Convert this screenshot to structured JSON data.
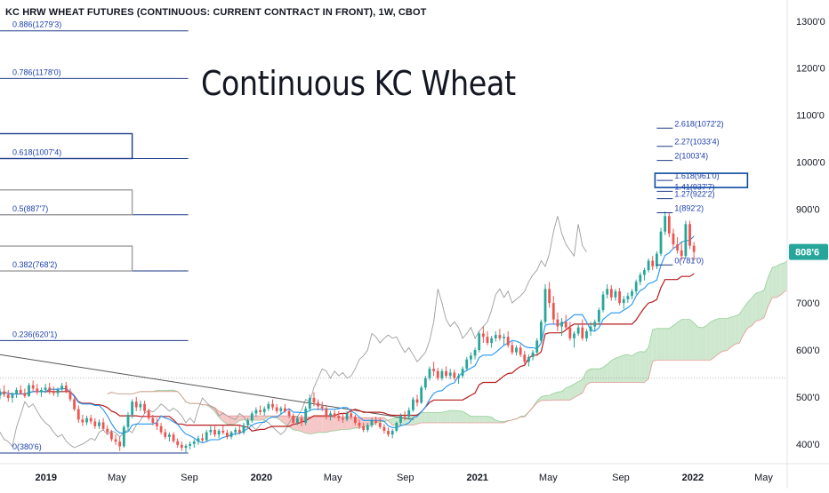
{
  "header": {
    "symbol": "KC HRW WHEAT FUTURES (CONTINUOUS: CURRENT CONTRACT IN FRONT), 1W, CBOT"
  },
  "annotation_title": "Continuous KC Wheat",
  "price_tag": {
    "label": "808'6",
    "value": 808.75,
    "color": "#26a69a"
  },
  "colors": {
    "up": "#26a69a",
    "down": "#ef5350",
    "fib_line": "#1e3a8a",
    "fib_text": "#1e40af",
    "tenkan": "#2196f3",
    "kijun": "#b71c1c",
    "lagging": "#9e9e9e",
    "cloud_bull": "#a5d6a7",
    "cloud_bear": "#ef9a9a",
    "trendline": "#555555"
  },
  "chart_data": {
    "type": "candlestick",
    "timeframe": "1W",
    "x_ticks": [
      "2019",
      "May",
      "Sep",
      "2020",
      "May",
      "Sep",
      "2021",
      "May",
      "Sep",
      "2022",
      "May"
    ],
    "x_tick_dates": [
      "2019-01-01",
      "2019-05-01",
      "2019-09-01",
      "2020-01-01",
      "2020-05-01",
      "2020-09-01",
      "2021-01-01",
      "2021-05-01",
      "2021-09-01",
      "2022-01-01",
      "2022-05-01"
    ],
    "y_ticks": [
      "1300'0",
      "1200'0",
      "1100'0",
      "1000'0",
      "900'0",
      "800'0",
      "700'0",
      "600'0",
      "500'0",
      "400'0"
    ],
    "y_tick_values": [
      1300,
      1200,
      1100,
      1000,
      900,
      800,
      700,
      600,
      500,
      400
    ],
    "ylim": [
      358,
      1345
    ],
    "xlim": [
      "2018-10-15",
      "2022-06-10"
    ],
    "last_price": 808.75,
    "dotted_reference": 540,
    "trendline": {
      "from": [
        "2018-10-15",
        590
      ],
      "to": [
        "2020-09-15",
        452
      ]
    },
    "fib_retracement": [
      {
        "label": "0.886(1279'3)",
        "price": 1279.375
      },
      {
        "label": "0.786(1178'0)",
        "price": 1178
      },
      {
        "label": "0.618(1007'4)",
        "price": 1007.5,
        "boxed": true
      },
      {
        "label": "0.5(887'7)",
        "price": 887.875,
        "boxed": true
      },
      {
        "label": "0.382(768'2)",
        "price": 768.25,
        "boxed": true
      },
      {
        "label": "0.236(620'1)",
        "price": 620.125
      },
      {
        "label": "0(380'6)",
        "price": 380.75
      }
    ],
    "fib_extension": [
      {
        "label": "2.618(1072'2)",
        "price": 1072.25
      },
      {
        "label": "2.27(1033'4)",
        "price": 1033.5
      },
      {
        "label": "2(1003'4)",
        "price": 1003.5
      },
      {
        "label": "1.618(961'0)",
        "price": 961,
        "boxed": true
      },
      {
        "label": "1.41(937'7)",
        "price": 937.875
      },
      {
        "label": "1.27(922'2)",
        "price": 922.25
      },
      {
        "label": "1(892'2)",
        "price": 892.25
      },
      {
        "label": "0(781'0)",
        "price": 781
      }
    ],
    "candles": [
      [
        "2018-10-15",
        503,
        518,
        495,
        512
      ],
      [
        "2018-10-22",
        512,
        525,
        500,
        505
      ],
      [
        "2018-10-29",
        505,
        515,
        490,
        498
      ],
      [
        "2018-11-05",
        498,
        510,
        488,
        506
      ],
      [
        "2018-11-12",
        506,
        520,
        498,
        515
      ],
      [
        "2018-11-19",
        515,
        525,
        505,
        508
      ],
      [
        "2018-11-26",
        508,
        518,
        498,
        502
      ],
      [
        "2018-12-03",
        502,
        530,
        500,
        525
      ],
      [
        "2018-12-10",
        525,
        535,
        512,
        518
      ],
      [
        "2018-12-17",
        518,
        528,
        505,
        510
      ],
      [
        "2018-12-24",
        510,
        520,
        500,
        515
      ],
      [
        "2018-12-31",
        515,
        528,
        508,
        520
      ],
      [
        "2019-01-07",
        520,
        530,
        506,
        512
      ],
      [
        "2019-01-14",
        512,
        522,
        502,
        508
      ],
      [
        "2019-01-21",
        508,
        520,
        500,
        516
      ],
      [
        "2019-01-28",
        516,
        530,
        510,
        524
      ],
      [
        "2019-02-04",
        524,
        532,
        508,
        512
      ],
      [
        "2019-02-11",
        512,
        518,
        490,
        495
      ],
      [
        "2019-02-18",
        495,
        500,
        470,
        474
      ],
      [
        "2019-02-25",
        474,
        482,
        445,
        452
      ],
      [
        "2019-03-04",
        452,
        462,
        438,
        446
      ],
      [
        "2019-03-11",
        446,
        460,
        440,
        455
      ],
      [
        "2019-03-18",
        455,
        462,
        442,
        448
      ],
      [
        "2019-03-25",
        448,
        455,
        432,
        438
      ],
      [
        "2019-04-01",
        438,
        452,
        432,
        446
      ],
      [
        "2019-04-08",
        446,
        455,
        428,
        432
      ],
      [
        "2019-04-15",
        432,
        440,
        420,
        425
      ],
      [
        "2019-04-22",
        425,
        430,
        405,
        410
      ],
      [
        "2019-04-29",
        410,
        420,
        398,
        405
      ],
      [
        "2019-05-06",
        405,
        415,
        385,
        395
      ],
      [
        "2019-05-13",
        395,
        440,
        392,
        436
      ],
      [
        "2019-05-20",
        436,
        468,
        430,
        462
      ],
      [
        "2019-05-27",
        462,
        495,
        455,
        490
      ],
      [
        "2019-06-03",
        490,
        500,
        470,
        478
      ],
      [
        "2019-06-10",
        478,
        492,
        470,
        485
      ],
      [
        "2019-06-17",
        485,
        492,
        465,
        470
      ],
      [
        "2019-06-24",
        470,
        475,
        450,
        455
      ],
      [
        "2019-07-01",
        455,
        462,
        440,
        445
      ],
      [
        "2019-07-08",
        445,
        455,
        430,
        438
      ],
      [
        "2019-07-15",
        438,
        445,
        420,
        425
      ],
      [
        "2019-07-22",
        425,
        432,
        410,
        415
      ],
      [
        "2019-07-29",
        415,
        425,
        405,
        420
      ],
      [
        "2019-08-05",
        420,
        425,
        402,
        406
      ],
      [
        "2019-08-12",
        406,
        412,
        392,
        398
      ],
      [
        "2019-08-19",
        398,
        405,
        385,
        392
      ],
      [
        "2019-08-26",
        392,
        400,
        380,
        396
      ],
      [
        "2019-09-02",
        396,
        405,
        388,
        400
      ],
      [
        "2019-09-09",
        400,
        410,
        392,
        405
      ],
      [
        "2019-09-16",
        405,
        418,
        398,
        412
      ],
      [
        "2019-09-23",
        412,
        422,
        404,
        408
      ],
      [
        "2019-09-30",
        408,
        430,
        405,
        425
      ],
      [
        "2019-10-07",
        425,
        438,
        418,
        430
      ],
      [
        "2019-10-14",
        430,
        438,
        415,
        420
      ],
      [
        "2019-10-21",
        420,
        432,
        412,
        428
      ],
      [
        "2019-10-28",
        428,
        440,
        420,
        424
      ],
      [
        "2019-11-04",
        424,
        430,
        410,
        415
      ],
      [
        "2019-11-11",
        415,
        428,
        410,
        425
      ],
      [
        "2019-11-18",
        425,
        435,
        418,
        430
      ],
      [
        "2019-11-25",
        430,
        440,
        420,
        424
      ],
      [
        "2019-12-02",
        424,
        445,
        420,
        440
      ],
      [
        "2019-12-09",
        440,
        455,
        432,
        450
      ],
      [
        "2019-12-16",
        450,
        470,
        445,
        465
      ],
      [
        "2019-12-23",
        465,
        478,
        458,
        472
      ],
      [
        "2019-12-30",
        472,
        482,
        462,
        468
      ],
      [
        "2020-01-06",
        468,
        480,
        460,
        475
      ],
      [
        "2020-01-13",
        475,
        490,
        470,
        485
      ],
      [
        "2020-01-20",
        485,
        495,
        472,
        478
      ],
      [
        "2020-01-27",
        478,
        485,
        465,
        470
      ],
      [
        "2020-02-03",
        470,
        480,
        462,
        476
      ],
      [
        "2020-02-10",
        476,
        485,
        466,
        470
      ],
      [
        "2020-02-17",
        470,
        475,
        455,
        460
      ],
      [
        "2020-02-24",
        460,
        465,
        440,
        445
      ],
      [
        "2020-03-02",
        445,
        460,
        440,
        455
      ],
      [
        "2020-03-09",
        455,
        462,
        438,
        445
      ],
      [
        "2020-03-16",
        445,
        480,
        440,
        475
      ],
      [
        "2020-03-23",
        475,
        505,
        470,
        498
      ],
      [
        "2020-03-30",
        498,
        510,
        480,
        488
      ],
      [
        "2020-04-06",
        488,
        495,
        472,
        480
      ],
      [
        "2020-04-13",
        480,
        490,
        470,
        476
      ],
      [
        "2020-04-20",
        476,
        482,
        452,
        460
      ],
      [
        "2020-04-27",
        460,
        470,
        450,
        465
      ],
      [
        "2020-05-04",
        465,
        472,
        455,
        460
      ],
      [
        "2020-05-11",
        460,
        470,
        448,
        455
      ],
      [
        "2020-05-18",
        455,
        465,
        445,
        452
      ],
      [
        "2020-05-25",
        452,
        470,
        448,
        465
      ],
      [
        "2020-06-01",
        465,
        475,
        452,
        458
      ],
      [
        "2020-06-08",
        458,
        462,
        440,
        445
      ],
      [
        "2020-06-15",
        445,
        452,
        432,
        438
      ],
      [
        "2020-06-22",
        438,
        445,
        425,
        430
      ],
      [
        "2020-06-29",
        430,
        445,
        425,
        440
      ],
      [
        "2020-07-06",
        440,
        455,
        435,
        450
      ],
      [
        "2020-07-13",
        450,
        458,
        440,
        445
      ],
      [
        "2020-07-20",
        445,
        455,
        432,
        436
      ],
      [
        "2020-07-27",
        436,
        442,
        422,
        428
      ],
      [
        "2020-08-03",
        428,
        435,
        415,
        420
      ],
      [
        "2020-08-10",
        420,
        432,
        412,
        428
      ],
      [
        "2020-08-17",
        428,
        448,
        425,
        445
      ],
      [
        "2020-08-24",
        445,
        465,
        440,
        460
      ],
      [
        "2020-08-31",
        460,
        470,
        450,
        458
      ],
      [
        "2020-09-07",
        458,
        478,
        452,
        472
      ],
      [
        "2020-09-14",
        472,
        500,
        468,
        495
      ],
      [
        "2020-09-21",
        495,
        505,
        480,
        488
      ],
      [
        "2020-09-28",
        488,
        525,
        485,
        520
      ],
      [
        "2020-10-05",
        520,
        545,
        515,
        540
      ],
      [
        "2020-10-12",
        540,
        565,
        535,
        560
      ],
      [
        "2020-10-19",
        560,
        575,
        545,
        555
      ],
      [
        "2020-10-26",
        555,
        562,
        535,
        540
      ],
      [
        "2020-11-02",
        540,
        560,
        535,
        555
      ],
      [
        "2020-11-09",
        555,
        565,
        540,
        545
      ],
      [
        "2020-11-16",
        545,
        560,
        538,
        552
      ],
      [
        "2020-11-23",
        552,
        558,
        535,
        540
      ],
      [
        "2020-11-30",
        540,
        550,
        528,
        545
      ],
      [
        "2020-12-07",
        545,
        565,
        540,
        560
      ],
      [
        "2020-12-14",
        560,
        585,
        555,
        580
      ],
      [
        "2020-12-21",
        580,
        595,
        570,
        588
      ],
      [
        "2020-12-28",
        588,
        605,
        580,
        600
      ],
      [
        "2021-01-04",
        600,
        640,
        595,
        635
      ],
      [
        "2021-01-11",
        635,
        650,
        615,
        628
      ],
      [
        "2021-01-18",
        628,
        640,
        610,
        615
      ],
      [
        "2021-01-25",
        615,
        630,
        605,
        625
      ],
      [
        "2021-02-01",
        625,
        640,
        618,
        632
      ],
      [
        "2021-02-08",
        632,
        645,
        620,
        625
      ],
      [
        "2021-02-15",
        625,
        635,
        610,
        628
      ],
      [
        "2021-02-22",
        628,
        640,
        605,
        610
      ],
      [
        "2021-03-01",
        610,
        618,
        590,
        595
      ],
      [
        "2021-03-08",
        595,
        610,
        588,
        605
      ],
      [
        "2021-03-15",
        605,
        612,
        585,
        590
      ],
      [
        "2021-03-22",
        590,
        598,
        570,
        575
      ],
      [
        "2021-03-29",
        575,
        590,
        565,
        585
      ],
      [
        "2021-04-05",
        585,
        600,
        578,
        595
      ],
      [
        "2021-04-12",
        595,
        625,
        590,
        620
      ],
      [
        "2021-04-19",
        620,
        665,
        615,
        660
      ],
      [
        "2021-04-26",
        660,
        740,
        655,
        730
      ],
      [
        "2021-05-03",
        730,
        745,
        690,
        700
      ],
      [
        "2021-05-10",
        700,
        715,
        655,
        665
      ],
      [
        "2021-05-17",
        665,
        680,
        640,
        650
      ],
      [
        "2021-05-24",
        650,
        668,
        630,
        660
      ],
      [
        "2021-05-31",
        660,
        675,
        642,
        648
      ],
      [
        "2021-06-07",
        648,
        660,
        620,
        625
      ],
      [
        "2021-06-14",
        625,
        640,
        605,
        635
      ],
      [
        "2021-06-21",
        635,
        655,
        630,
        648
      ],
      [
        "2021-06-28",
        648,
        665,
        620,
        625
      ],
      [
        "2021-07-05",
        625,
        645,
        618,
        640
      ],
      [
        "2021-07-12",
        640,
        660,
        630,
        650
      ],
      [
        "2021-07-19",
        650,
        665,
        640,
        660
      ],
      [
        "2021-07-26",
        660,
        690,
        655,
        685
      ],
      [
        "2021-08-02",
        685,
        725,
        680,
        718
      ],
      [
        "2021-08-09",
        718,
        740,
        710,
        730
      ],
      [
        "2021-08-16",
        730,
        738,
        705,
        712
      ],
      [
        "2021-08-23",
        712,
        730,
        705,
        725
      ],
      [
        "2021-08-30",
        725,
        732,
        695,
        700
      ],
      [
        "2021-09-06",
        700,
        715,
        688,
        708
      ],
      [
        "2021-09-13",
        708,
        722,
        700,
        715
      ],
      [
        "2021-09-20",
        715,
        730,
        708,
        725
      ],
      [
        "2021-09-27",
        725,
        750,
        718,
        745
      ],
      [
        "2021-10-04",
        745,
        765,
        738,
        760
      ],
      [
        "2021-10-11",
        760,
        775,
        748,
        770
      ],
      [
        "2021-10-18",
        770,
        795,
        765,
        790
      ],
      [
        "2021-10-25",
        790,
        800,
        770,
        778
      ],
      [
        "2021-11-01",
        778,
        810,
        772,
        805
      ],
      [
        "2021-11-08",
        805,
        860,
        800,
        852
      ],
      [
        "2021-11-15",
        852,
        895,
        845,
        885
      ],
      [
        "2021-11-22",
        885,
        892,
        840,
        848
      ],
      [
        "2021-11-29",
        848,
        858,
        815,
        825
      ],
      [
        "2021-12-06",
        825,
        840,
        805,
        812
      ],
      [
        "2021-12-13",
        812,
        830,
        790,
        800
      ],
      [
        "2021-12-20",
        800,
        875,
        795,
        868
      ],
      [
        "2021-12-27",
        868,
        875,
        815,
        822
      ],
      [
        "2022-01-03",
        822,
        830,
        790,
        808.75
      ]
    ]
  }
}
